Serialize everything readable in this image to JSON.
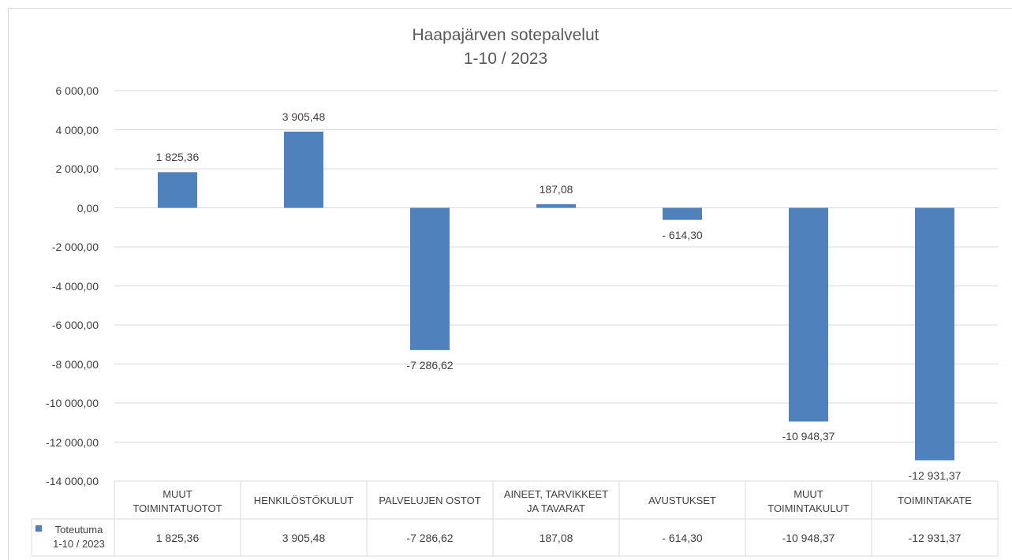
{
  "chart_data": {
    "type": "bar",
    "title": "Haapajärven sotepalvelut\n1-10 / 2023",
    "categories": [
      "MUUT\nTOIMINTATUOTOT",
      "HENKILÖSTÖKULUT",
      "PALVELUJEN OSTOT",
      "AINEET, TARVIKKEET\nJA TAVARAT",
      "AVUSTUKSET",
      "MUUT\nTOIMINTAKULUT",
      "TOIMINTAKATE"
    ],
    "series": [
      {
        "name": "Toteutuma\n1-10 / 2023",
        "color": "#4f81bd",
        "values": [
          1825.36,
          3905.48,
          -7286.62,
          187.08,
          -614.3,
          -10948.37,
          -12931.37
        ],
        "value_labels": [
          "1 825,36",
          "3 905,48",
          "-7 286,62",
          "187,08",
          "- 614,30",
          "-10 948,37",
          "-12 931,37"
        ]
      }
    ],
    "ylim": [
      -14000,
      6000
    ],
    "yticks": [
      {
        "value": -14000,
        "label": "-14 000,00"
      },
      {
        "value": -12000,
        "label": "-12 000,00"
      },
      {
        "value": -10000,
        "label": "-10 000,00"
      },
      {
        "value": -8000,
        "label": "-8 000,00"
      },
      {
        "value": -6000,
        "label": "-6 000,00"
      },
      {
        "value": -4000,
        "label": "-4 000,00"
      },
      {
        "value": -2000,
        "label": "-2 000,00"
      },
      {
        "value": 0,
        "label": "0,00"
      },
      {
        "value": 2000,
        "label": "2 000,00"
      },
      {
        "value": 4000,
        "label": "4 000,00"
      },
      {
        "value": 6000,
        "label": "6 000,00"
      }
    ],
    "grid": true,
    "data_table": true
  }
}
